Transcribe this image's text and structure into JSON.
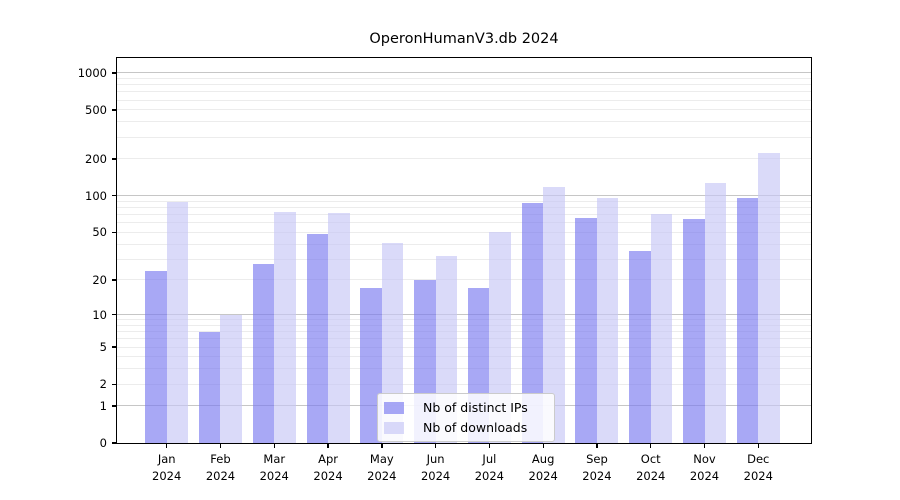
{
  "chart_data": {
    "type": "bar",
    "title": "OperonHumanV3.db 2024",
    "year": "2024",
    "categories": [
      "Jan",
      "Feb",
      "Mar",
      "Apr",
      "May",
      "Jun",
      "Jul",
      "Aug",
      "Sep",
      "Oct",
      "Nov",
      "Dec"
    ],
    "series": [
      {
        "key": "distinct-ips",
        "name": "Nb of distinct IPs",
        "color": "#7979f0",
        "values": [
          24,
          7,
          27,
          48,
          17,
          20,
          17,
          87,
          66,
          35,
          65,
          95
        ]
      },
      {
        "key": "downloads",
        "name": "Nb of downloads",
        "color": "#c6c6f6",
        "values": [
          89,
          10,
          73,
          72,
          41,
          32,
          50,
          117,
          96,
          71,
          127,
          222
        ]
      }
    ],
    "bar_alpha": 0.65,
    "yscale": "log1p",
    "ylim": [
      0,
      1320
    ],
    "y_ticks": [
      0,
      1,
      2,
      5,
      10,
      20,
      50,
      100,
      200,
      500,
      1000
    ],
    "y_major_grid": [
      1,
      10,
      100,
      1000
    ],
    "y_minor_grid": [
      2,
      3,
      4,
      5,
      6,
      7,
      8,
      9,
      20,
      30,
      40,
      50,
      60,
      70,
      80,
      90,
      200,
      300,
      400,
      500,
      600,
      700,
      800,
      900
    ],
    "grid": true,
    "legend_position": "lower center",
    "colors": {
      "grid_major": "#c6c6c6",
      "grid_minor": "#ececec",
      "axis": "#000000",
      "background": "#ffffff"
    }
  }
}
